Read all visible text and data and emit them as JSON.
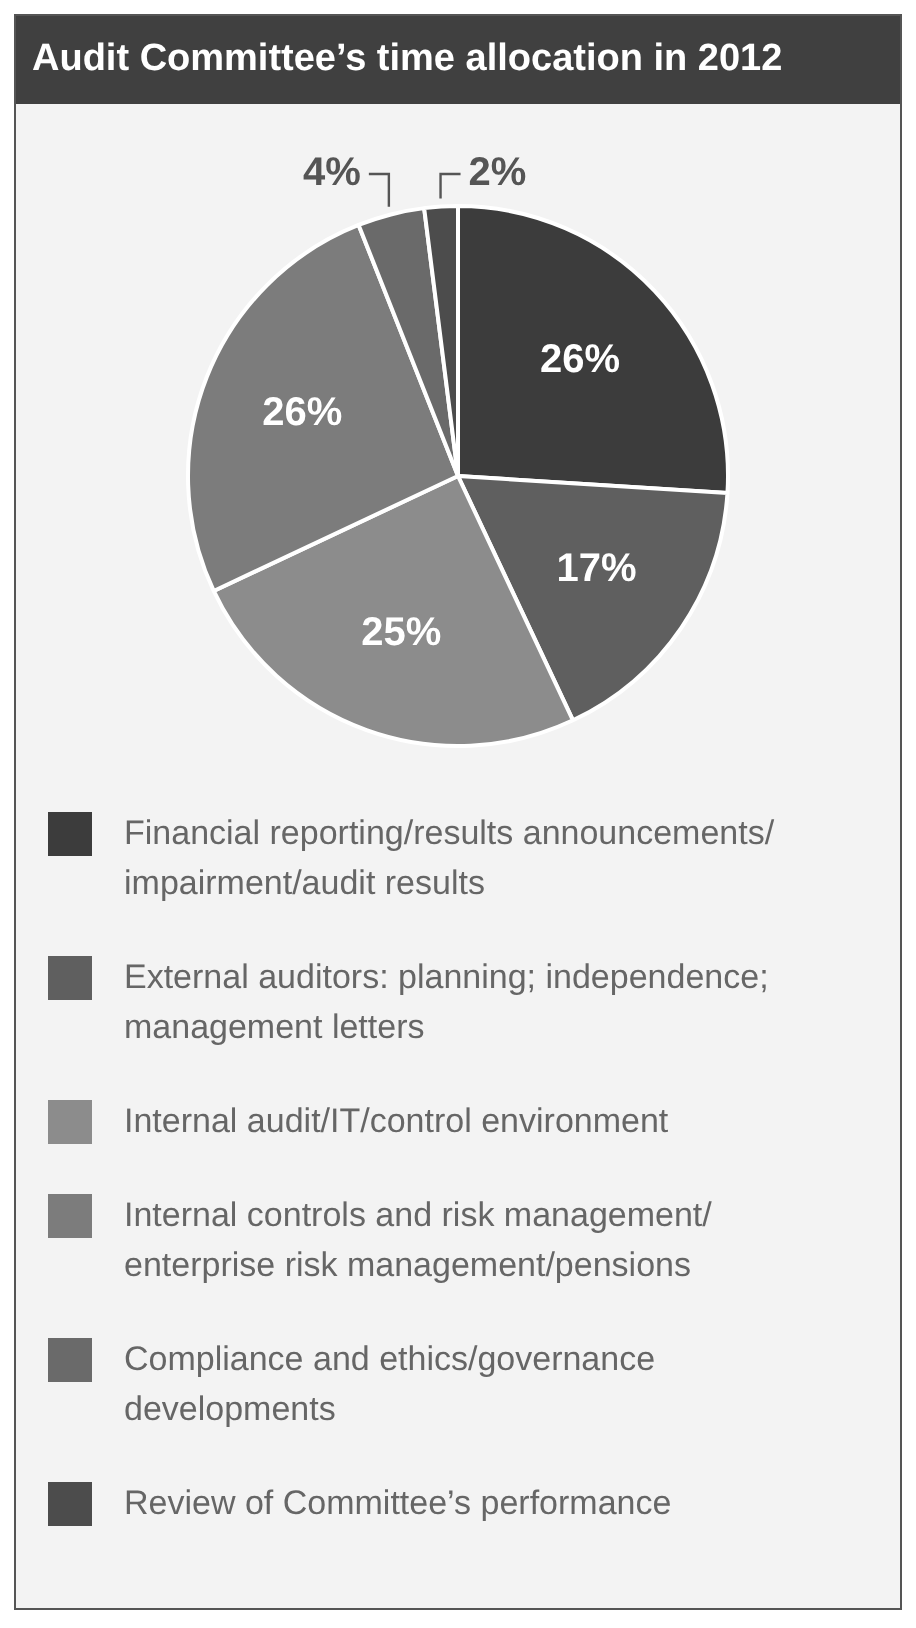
{
  "chart_data": {
    "type": "pie",
    "title": "Audit Committee’s time allocation in 2012",
    "categories": [
      "Financial reporting/results announcements/ impairment/audit results",
      "External auditors: planning; independence; management letters",
      "Internal audit/IT/control environment",
      "Internal controls and risk management/ enterprise risk management/pensions",
      "Compliance and ethics/governance developments",
      "Review of Committee’s performance"
    ],
    "values": [
      26,
      17,
      25,
      26,
      4,
      2
    ],
    "colors": [
      "#3c3c3c",
      "#5f5f5f",
      "#8c8c8c",
      "#7c7c7c",
      "#6a6a6a",
      "#4c4c4c"
    ],
    "value_labels": [
      "26%",
      "17%",
      "25%",
      "26%",
      "4%",
      "2%"
    ],
    "legend": "bottom"
  }
}
